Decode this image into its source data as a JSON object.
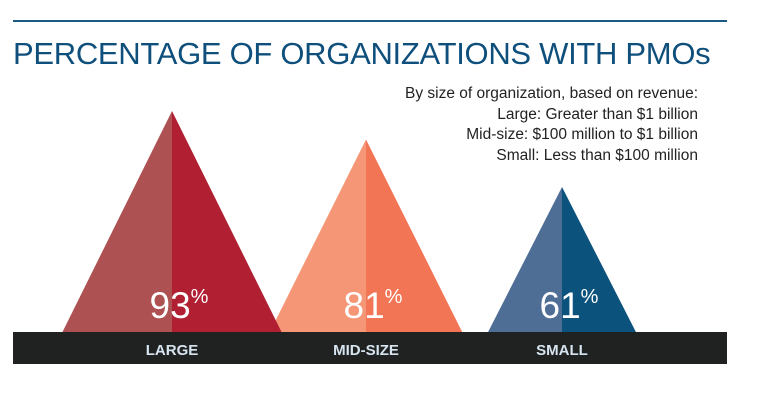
{
  "chart_data": {
    "type": "bar",
    "title": "PERCENTAGE OF ORGANIZATIONS WITH PMOs",
    "subtitle": [
      "By size of organization, based on revenue:",
      "Large: Greater than $1 billion",
      "Mid-size: $100 million to $1 billion",
      "Small: Less than $100 million"
    ],
    "categories": [
      "LARGE",
      "MID-SIZE",
      "SMALL"
    ],
    "values": [
      93,
      81,
      61
    ],
    "value_suffix": "%",
    "mark_shape": "triangle",
    "colors": [
      {
        "light": "#ad5152",
        "dark": "#b01f32"
      },
      {
        "light": "#f59677",
        "dark": "#f27655"
      },
      {
        "light": "#4f6e96",
        "dark": "#0b527d"
      }
    ],
    "base_bar_color": "#202221",
    "label_color": "#d6e4f0",
    "title_color": "#0e4f7c"
  }
}
